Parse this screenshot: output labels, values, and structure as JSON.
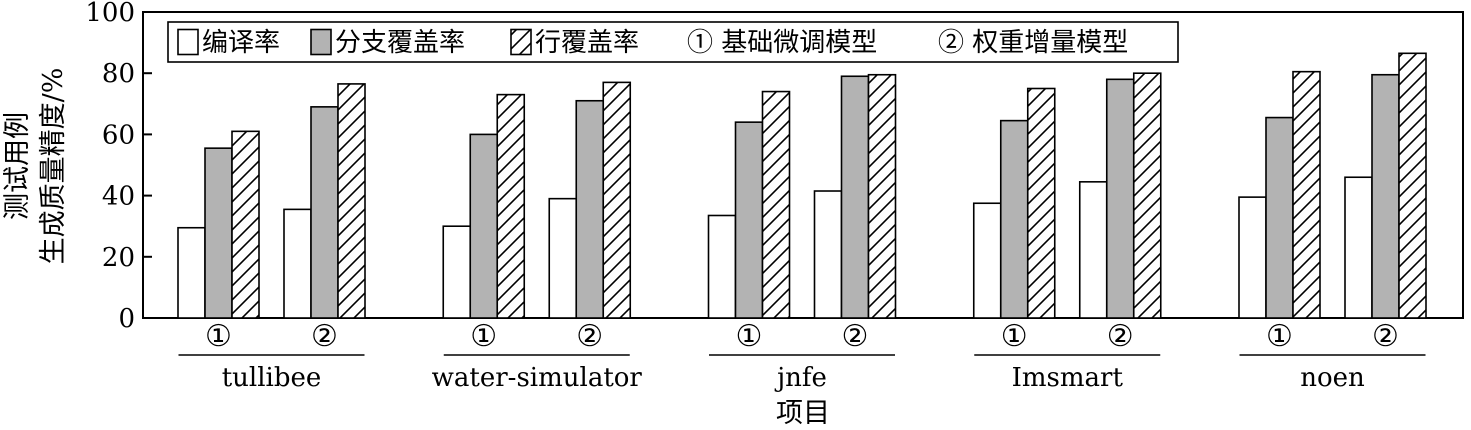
{
  "chart_data": {
    "type": "bar",
    "xlabel": "项目",
    "ylabel_lines": [
      "测试用例",
      "生成质量精度/%"
    ],
    "ylim": [
      0,
      100
    ],
    "yticks": [
      0,
      20,
      40,
      60,
      80,
      100
    ],
    "grid": false,
    "legend_position": "top",
    "legend": {
      "metrics": [
        "编译率",
        "分支覆盖率",
        "行覆盖率"
      ],
      "models": [
        "① 基础微调模型",
        "② 权重增量模型"
      ]
    },
    "model_markers": [
      "①",
      "②"
    ],
    "projects": [
      "tullibee",
      "water-simulator",
      "jnfe",
      "Imsmart",
      "noen"
    ],
    "series": [
      {
        "name": "编译率",
        "fill": "white",
        "values": [
          [
            29.5,
            35.5
          ],
          [
            30,
            39
          ],
          [
            33.5,
            41.5
          ],
          [
            37.5,
            44.5
          ],
          [
            39.5,
            46
          ]
        ]
      },
      {
        "name": "分支覆盖率",
        "fill": "gray",
        "values": [
          [
            55.5,
            69
          ],
          [
            60,
            71
          ],
          [
            64,
            79
          ],
          [
            64.5,
            78
          ],
          [
            65.5,
            79.5
          ]
        ]
      },
      {
        "name": "行覆盖率",
        "fill": "hatch",
        "values": [
          [
            61,
            76.5
          ],
          [
            73,
            77
          ],
          [
            74,
            79.5
          ],
          [
            75,
            80
          ],
          [
            80.5,
            86.5
          ]
        ]
      }
    ],
    "colors": {
      "gray": "#b3b3b3",
      "line": "#000000",
      "background": "#ffffff"
    }
  }
}
